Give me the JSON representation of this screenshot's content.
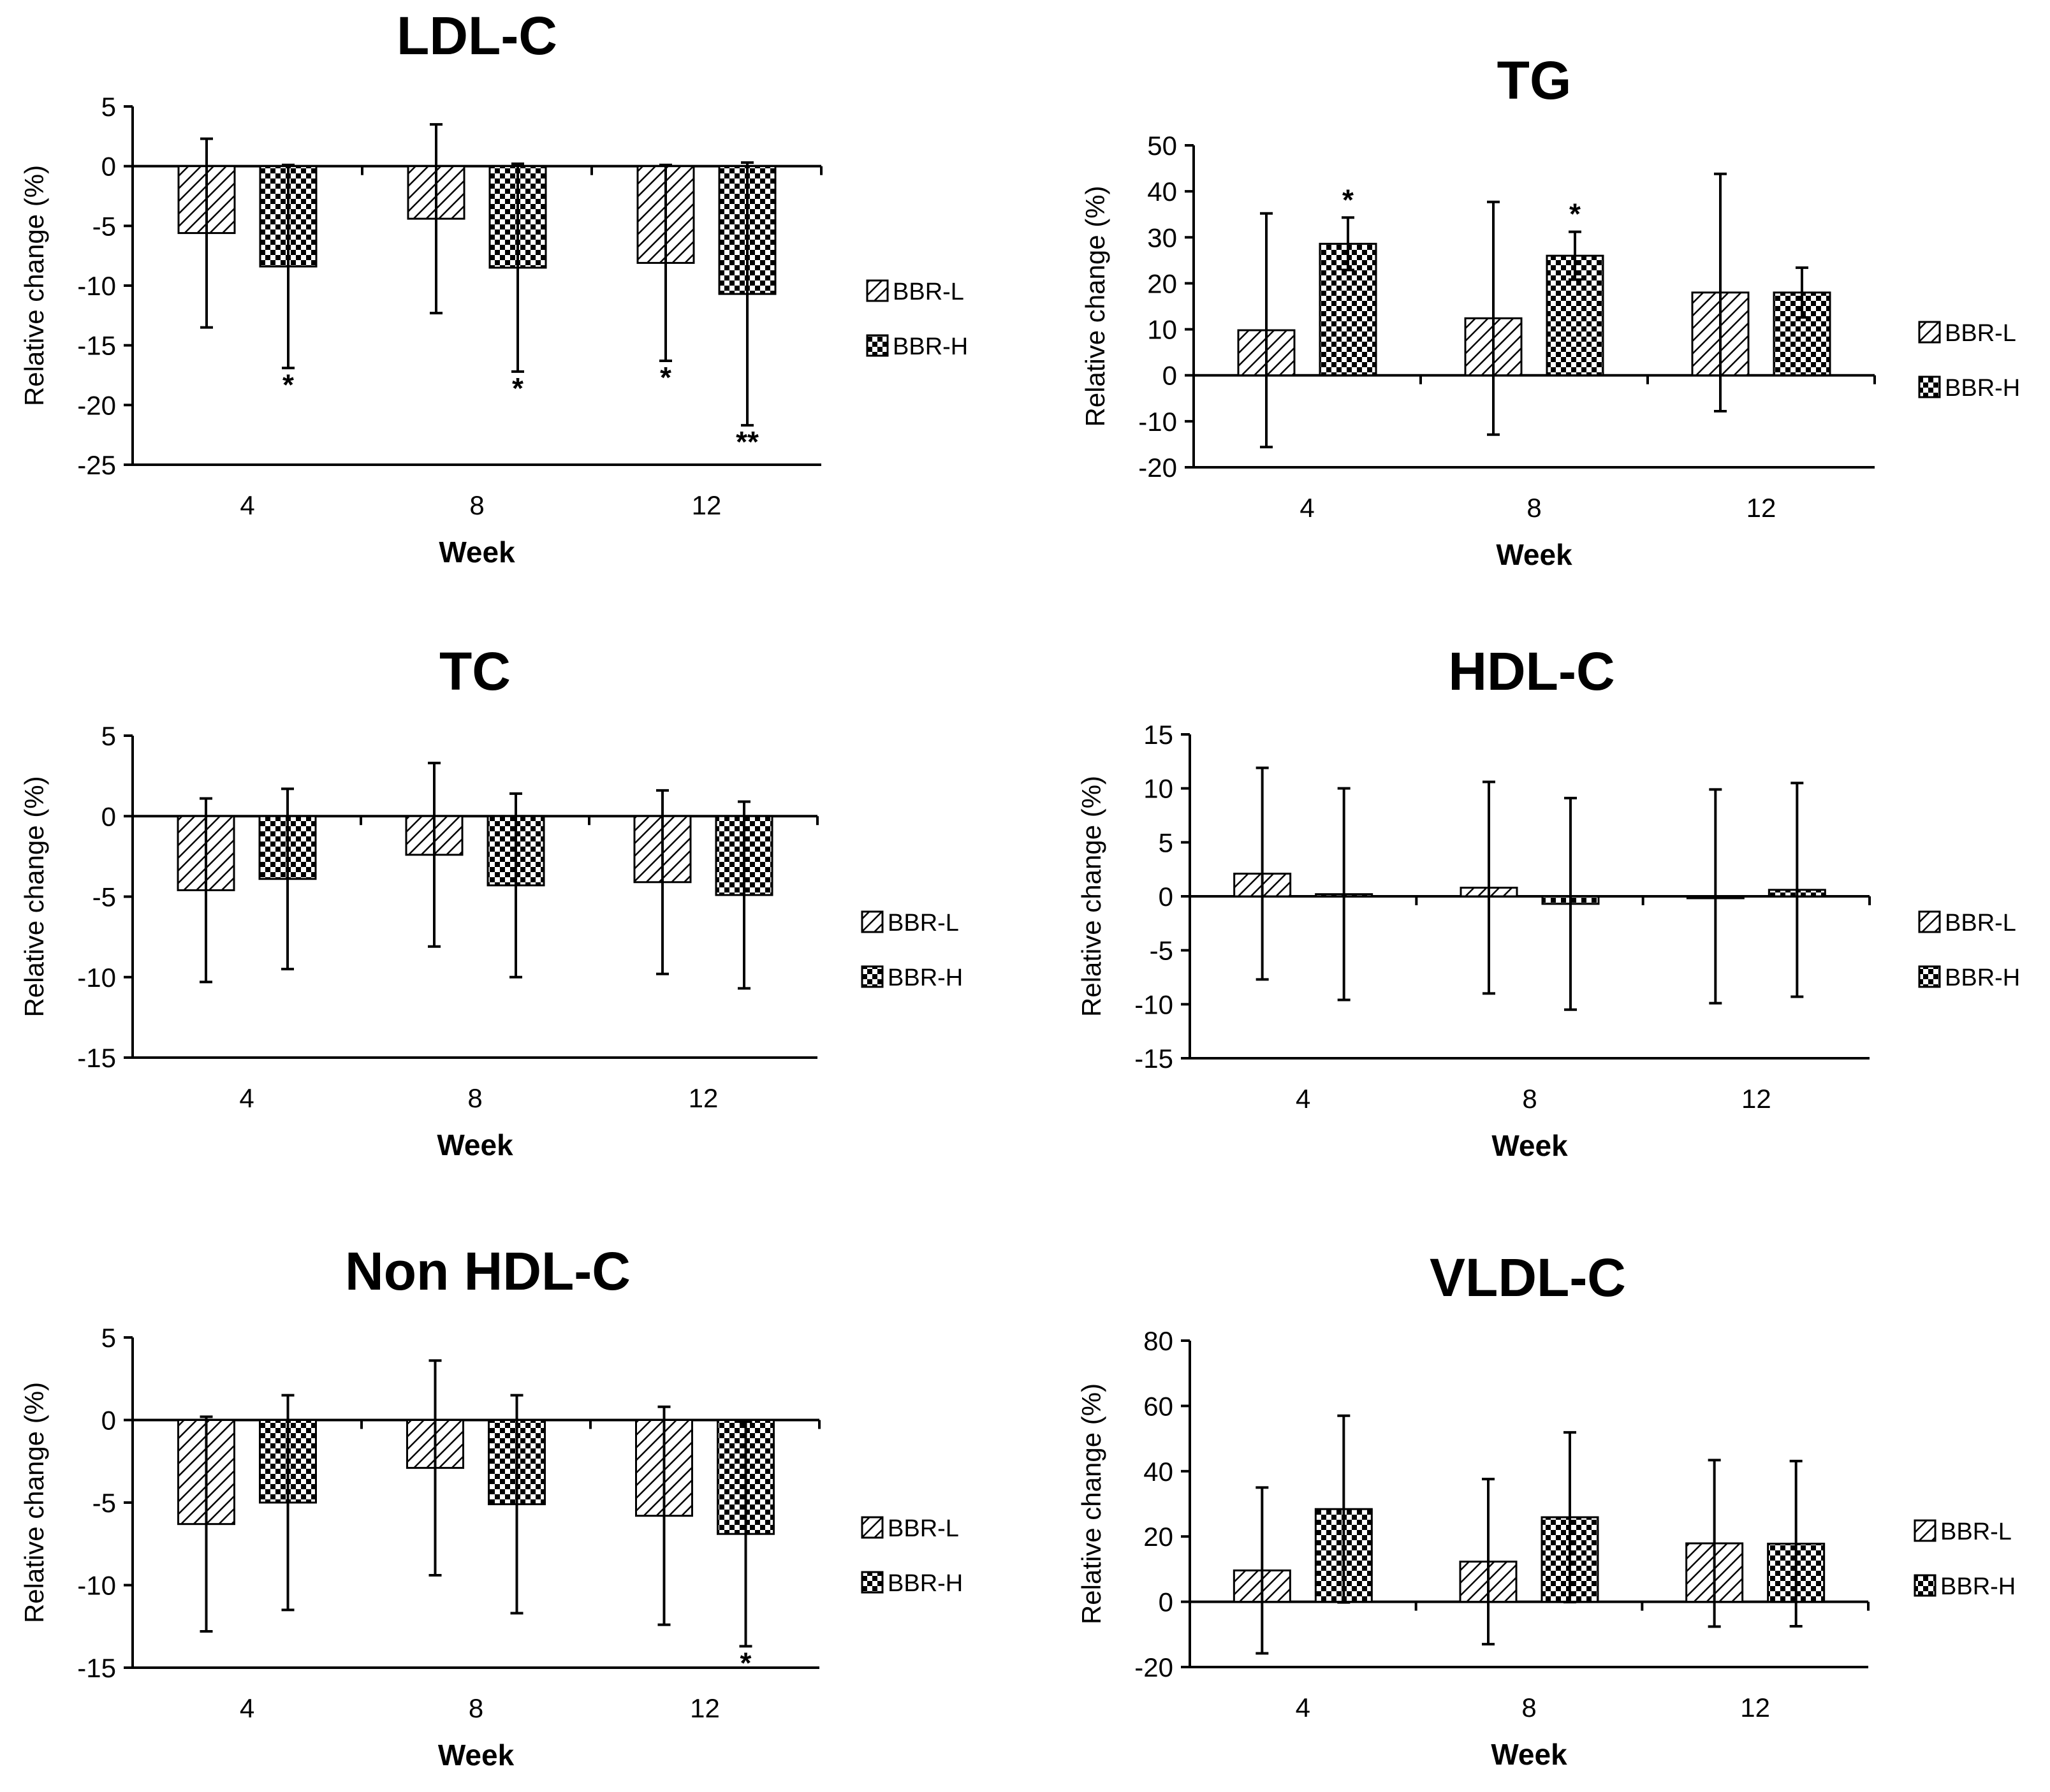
{
  "chart_data": [
    {
      "type": "bar",
      "title": "LDL-C",
      "xlabel": "Week",
      "ylabel": "Relative change (%)",
      "categories": [
        "4",
        "8",
        "12"
      ],
      "ylim": [
        -25,
        5
      ],
      "yticks": [
        5,
        0,
        -5,
        -10,
        -15,
        -20,
        -25
      ],
      "series": [
        {
          "name": "BBR-L",
          "values": [
            -5.6,
            -4.4,
            -8.1
          ],
          "errors": [
            7.9,
            7.9,
            8.2
          ],
          "sig": [
            "",
            "",
            "*"
          ]
        },
        {
          "name": "BBR-H",
          "values": [
            -8.4,
            -8.5,
            -10.7
          ],
          "errors": [
            8.5,
            8.7,
            11.0
          ],
          "sig": [
            "*",
            "*",
            "**"
          ]
        }
      ]
    },
    {
      "type": "bar",
      "title": "TG",
      "xlabel": "Week",
      "ylabel": "Relative change (%)",
      "categories": [
        "4",
        "8",
        "12"
      ],
      "ylim": [
        -20,
        50
      ],
      "yticks": [
        50,
        40,
        30,
        20,
        10,
        0,
        -10,
        -20
      ],
      "series": [
        {
          "name": "BBR-L",
          "values": [
            9.8,
            12.4,
            18.0
          ],
          "errors": [
            25.4,
            25.3,
            25.8
          ],
          "sig": [
            "",
            "",
            ""
          ]
        },
        {
          "name": "BBR-H",
          "values": [
            28.6,
            26.0,
            18.0
          ],
          "errors": [
            5.7,
            5.2,
            5.4
          ],
          "sig": [
            "*",
            "*",
            ""
          ]
        }
      ]
    },
    {
      "type": "bar",
      "title": "TC",
      "xlabel": "Week",
      "ylabel": "Relative change (%)",
      "categories": [
        "4",
        "8",
        "12"
      ],
      "ylim": [
        -15,
        5
      ],
      "yticks": [
        5,
        0,
        -5,
        -10,
        -15
      ],
      "series": [
        {
          "name": "BBR-L",
          "values": [
            -4.6,
            -2.4,
            -4.1
          ],
          "errors": [
            5.7,
            5.7,
            5.7
          ],
          "sig": [
            "",
            "",
            ""
          ]
        },
        {
          "name": "BBR-H",
          "values": [
            -3.9,
            -4.3,
            -4.9
          ],
          "errors": [
            5.6,
            5.7,
            5.8
          ],
          "sig": [
            "",
            "",
            ""
          ]
        }
      ]
    },
    {
      "type": "bar",
      "title": "HDL-C",
      "xlabel": "Week",
      "ylabel": "Relative change (%)",
      "categories": [
        "4",
        "8",
        "12"
      ],
      "ylim": [
        -15,
        15
      ],
      "yticks": [
        15,
        10,
        5,
        0,
        -5,
        -10,
        -15
      ],
      "series": [
        {
          "name": "BBR-L",
          "values": [
            2.1,
            0.8,
            0.0
          ],
          "errors": [
            9.8,
            9.8,
            9.9
          ],
          "sig": [
            "",
            "",
            ""
          ]
        },
        {
          "name": "BBR-H",
          "values": [
            0.2,
            -0.7,
            0.6
          ],
          "errors": [
            9.8,
            9.8,
            9.9
          ],
          "sig": [
            "",
            "",
            ""
          ]
        }
      ]
    },
    {
      "type": "bar",
      "title": "Non HDL-C",
      "xlabel": "Week",
      "ylabel": "Relative change (%)",
      "categories": [
        "4",
        "8",
        "12"
      ],
      "ylim": [
        -15,
        5
      ],
      "yticks": [
        5,
        0,
        -5,
        -10,
        -15
      ],
      "series": [
        {
          "name": "BBR-L",
          "values": [
            -6.3,
            -2.9,
            -5.8
          ],
          "errors": [
            6.5,
            6.5,
            6.6
          ],
          "sig": [
            "",
            "",
            ""
          ]
        },
        {
          "name": "BBR-H",
          "values": [
            -5.0,
            -5.1,
            -6.9
          ],
          "errors": [
            6.5,
            6.6,
            6.8
          ],
          "sig": [
            "",
            "",
            "*"
          ]
        }
      ]
    },
    {
      "type": "bar",
      "title": "VLDL-C",
      "xlabel": "Week",
      "ylabel": "Relative change (%)",
      "categories": [
        "4",
        "8",
        "12"
      ],
      "ylim": [
        -20,
        80
      ],
      "yticks": [
        80,
        60,
        40,
        20,
        0,
        -20
      ],
      "series": [
        {
          "name": "BBR-L",
          "values": [
            9.6,
            12.3,
            17.9
          ],
          "errors": [
            25.4,
            25.3,
            25.5
          ],
          "sig": [
            "",
            "",
            ""
          ]
        },
        {
          "name": "BBR-H",
          "values": [
            28.4,
            25.9,
            17.8
          ],
          "errors": [
            28.6,
            26.0,
            25.3
          ],
          "sig": [
            "",
            "",
            ""
          ]
        }
      ]
    }
  ]
}
